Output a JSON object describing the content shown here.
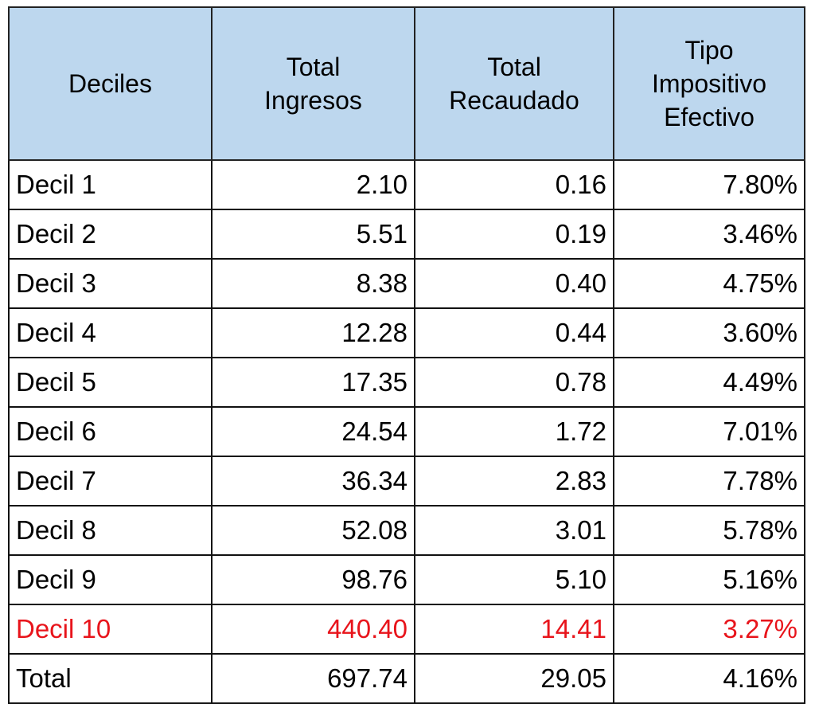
{
  "table": {
    "header": [
      [
        "Deciles"
      ],
      [
        "Total",
        "Ingresos"
      ],
      [
        "Total",
        "Recaudado"
      ],
      [
        "Tipo",
        "Impositivo",
        "Efectivo"
      ]
    ],
    "rows": [
      [
        "Decil 1",
        "2.10",
        "0.16",
        "7.80%"
      ],
      [
        "Decil 2",
        "5.51",
        "0.19",
        "3.46%"
      ],
      [
        "Decil 3",
        "8.38",
        "0.40",
        "4.75%"
      ],
      [
        "Decil 4",
        "12.28",
        "0.44",
        "3.60%"
      ],
      [
        "Decil 5",
        "17.35",
        "0.78",
        "4.49%"
      ],
      [
        "Decil 6",
        "24.54",
        "1.72",
        "7.01%"
      ],
      [
        "Decil 7",
        "36.34",
        "2.83",
        "7.78%"
      ],
      [
        "Decil 8",
        "52.08",
        "3.01",
        "5.78%"
      ],
      [
        "Decil 9",
        "98.76",
        "5.10",
        "5.16%"
      ],
      [
        "Decil 10",
        "440.40",
        "14.41",
        "3.27%"
      ],
      [
        "Total",
        "697.74",
        "29.05",
        "4.16%"
      ]
    ]
  }
}
